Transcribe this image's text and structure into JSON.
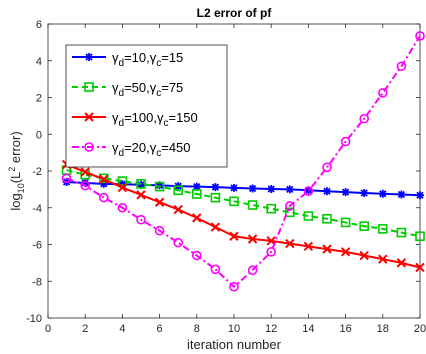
{
  "chart_data": {
    "type": "line",
    "title": "L2 error of pf",
    "xlabel": "iteration number",
    "ylabel": {
      "prefix": "log",
      "sub": "10",
      "mid": "(L",
      "sup": "2",
      "suffix": " error)"
    },
    "xlim": [
      0,
      20
    ],
    "ylim": [
      -10,
      6
    ],
    "xticks": [
      0,
      2,
      4,
      6,
      8,
      10,
      12,
      14,
      16,
      18,
      20
    ],
    "yticks": [
      -10,
      -8,
      -6,
      -4,
      -2,
      0,
      2,
      4,
      6
    ],
    "grid": false,
    "legend_position": "top-left",
    "x": [
      1,
      2,
      3,
      4,
      5,
      6,
      7,
      8,
      9,
      10,
      11,
      12,
      13,
      14,
      15,
      16,
      17,
      18,
      19,
      20
    ],
    "series": [
      {
        "name": "γd=10,γc=15",
        "legend": {
          "g1": "γ",
          "s1": "d",
          "v1": "=10,",
          "g2": "γ",
          "s2": "c",
          "v2": "=15"
        },
        "color": "#0000ff",
        "linestyle": "solid",
        "marker": "asterisk",
        "values": [
          -2.6,
          -2.65,
          -2.7,
          -2.72,
          -2.75,
          -2.78,
          -2.82,
          -2.85,
          -2.88,
          -2.92,
          -2.95,
          -2.98,
          -3.0,
          -3.05,
          -3.1,
          -3.15,
          -3.2,
          -3.24,
          -3.28,
          -3.32
        ]
      },
      {
        "name": "γd=50,γc=75",
        "legend": {
          "g1": "γ",
          "s1": "d",
          "v1": "=50,",
          "g2": "γ",
          "s2": "c",
          "v2": "=75"
        },
        "color": "#00cc00",
        "linestyle": "dashed",
        "marker": "square",
        "values": [
          -1.95,
          -2.2,
          -2.4,
          -2.55,
          -2.7,
          -2.85,
          -3.05,
          -3.25,
          -3.45,
          -3.65,
          -3.85,
          -4.05,
          -4.25,
          -4.45,
          -4.6,
          -4.8,
          -5.0,
          -5.15,
          -5.35,
          -5.55
        ]
      },
      {
        "name": "γd=100,γc=150",
        "legend": {
          "g1": "γ",
          "s1": "d",
          "v1": "=100,",
          "g2": "γ",
          "s2": "c",
          "v2": "=150"
        },
        "color": "#ff0000",
        "linestyle": "solid",
        "marker": "x",
        "values": [
          -1.65,
          -2.05,
          -2.45,
          -2.9,
          -3.3,
          -3.7,
          -4.1,
          -4.55,
          -5.05,
          -5.55,
          -5.7,
          -5.8,
          -5.95,
          -6.1,
          -6.25,
          -6.4,
          -6.6,
          -6.8,
          -7.0,
          -7.25
        ]
      },
      {
        "name": "γd=20,γc=450",
        "legend": {
          "g1": "γ",
          "s1": "d",
          "v1": "=20,",
          "g2": "γ",
          "s2": "c",
          "v2": "=450"
        },
        "color": "#ff00ff",
        "linestyle": "dashdot",
        "marker": "circle",
        "values": [
          -2.4,
          -2.8,
          -3.45,
          -4.0,
          -4.65,
          -5.25,
          -5.9,
          -6.6,
          -7.35,
          -8.3,
          -7.4,
          -6.4,
          -3.9,
          -3.1,
          -1.8,
          -0.4,
          0.85,
          2.25,
          3.7,
          5.35
        ]
      }
    ]
  }
}
